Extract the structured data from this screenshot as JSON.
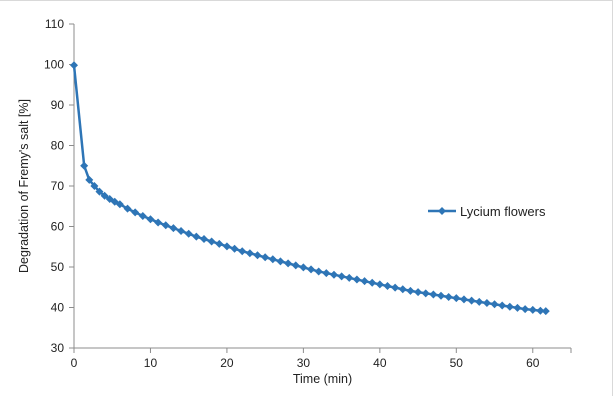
{
  "chart_data": {
    "type": "line",
    "title": "",
    "xlabel": "Time (min)",
    "ylabel": "Degradation of Fremy's salt [%]",
    "xlim": [
      0,
      65
    ],
    "ylim": [
      30,
      110
    ],
    "x_ticks": [
      0,
      10,
      20,
      30,
      40,
      50,
      60
    ],
    "y_ticks": [
      30,
      40,
      50,
      60,
      70,
      80,
      90,
      100,
      110
    ],
    "grid": false,
    "legend_position": "right",
    "series": [
      {
        "name": "Lycium flowers",
        "color": "#2e75b6",
        "marker": "diamond",
        "x": [
          0,
          1.33,
          2,
          2.67,
          3.33,
          4,
          4.67,
          5.33,
          6,
          7,
          8,
          9,
          10,
          11,
          12,
          13,
          14,
          15,
          16,
          17,
          18,
          19,
          20,
          21,
          22,
          23,
          24,
          25,
          26,
          27,
          28,
          29,
          30,
          31,
          32,
          33,
          34,
          35,
          36,
          37,
          38,
          39,
          40,
          41,
          42,
          43,
          44,
          45,
          46,
          47,
          48,
          49,
          50,
          51,
          52,
          53,
          54,
          55,
          56,
          57,
          58,
          59,
          60,
          61,
          61.7
        ],
        "y": [
          99.8,
          75,
          71.5,
          70,
          68.6,
          67.6,
          66.8,
          66.1,
          65.5,
          64.4,
          63.5,
          62.6,
          61.8,
          61.0,
          60.3,
          59.6,
          58.9,
          58.2,
          57.5,
          56.9,
          56.3,
          55.7,
          55.1,
          54.5,
          53.9,
          53.4,
          52.9,
          52.4,
          51.9,
          51.4,
          50.9,
          50.4,
          49.9,
          49.4,
          48.9,
          48.5,
          48.1,
          47.7,
          47.3,
          46.9,
          46.5,
          46.1,
          45.7,
          45.3,
          44.9,
          44.5,
          44.1,
          43.8,
          43.5,
          43.2,
          42.9,
          42.6,
          42.3,
          42.0,
          41.7,
          41.4,
          41.1,
          40.8,
          40.5,
          40.2,
          39.9,
          39.6,
          39.4,
          39.2,
          39.1
        ]
      }
    ]
  }
}
